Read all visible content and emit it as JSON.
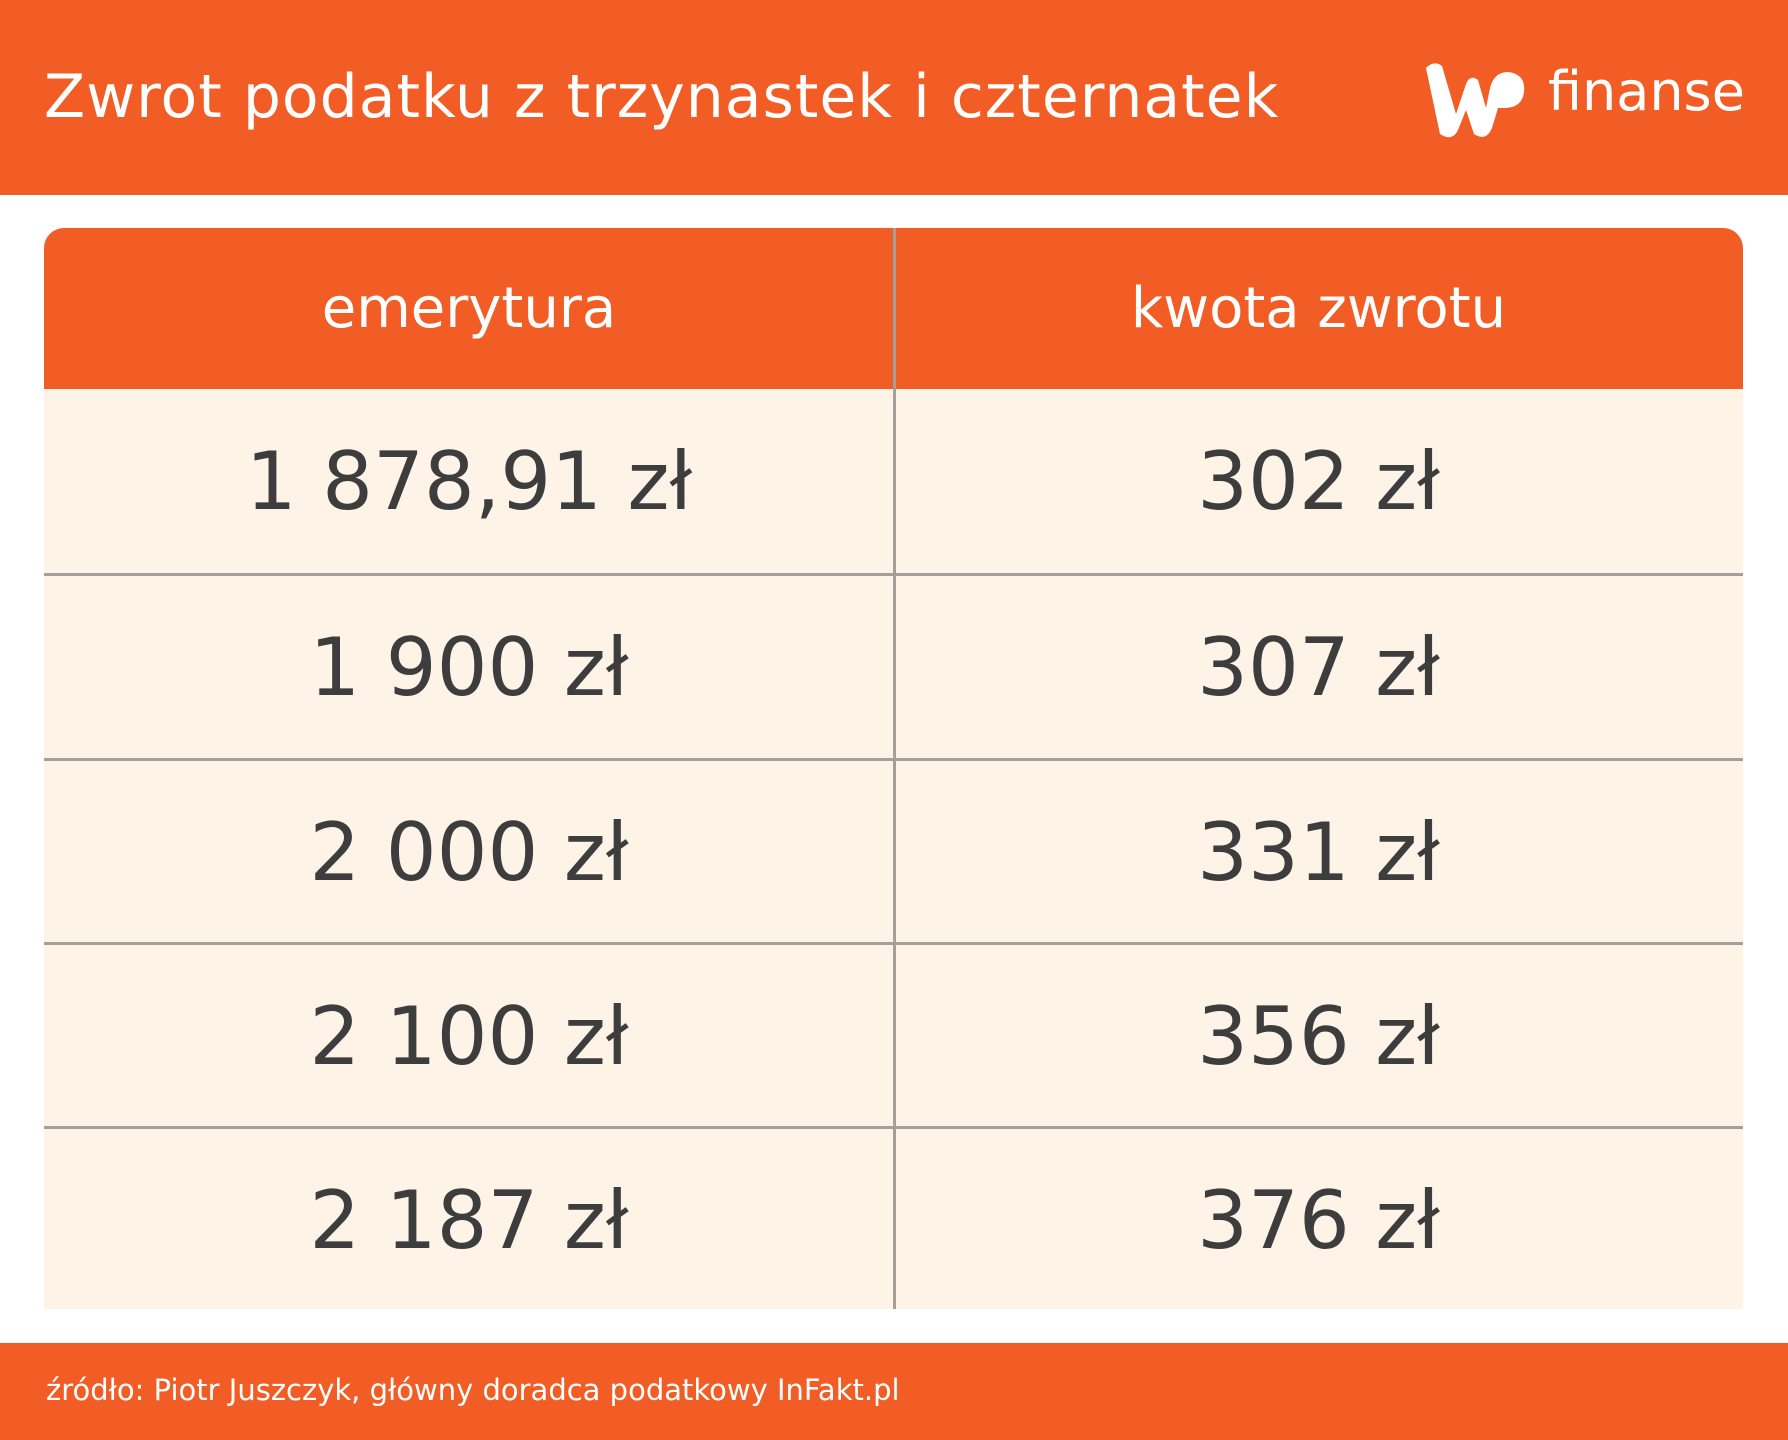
{
  "header": {
    "title": "Zwrot podatku z trzynastek i czternatek",
    "logo_text": "finanse",
    "logo_mark": "WP"
  },
  "table": {
    "columns": [
      "emerytura",
      "kwota zwrotu"
    ],
    "rows": [
      [
        "1 878,91 zł",
        "302 zł"
      ],
      [
        "1 900 zł",
        "307 zł"
      ],
      [
        "2 000 zł",
        "331 zł"
      ],
      [
        "2 100 zł",
        "356 zł"
      ],
      [
        "2 187 zł",
        "376 zł"
      ]
    ]
  },
  "footer": {
    "source": "źródło: Piotr Juszczyk, główny doradca podatkowy InFakt.pl"
  },
  "colors": {
    "brand_orange": "#f15d24",
    "row_background": "#fdf3e7",
    "text": "#3d3d3d",
    "divider": "#a3a09b"
  }
}
